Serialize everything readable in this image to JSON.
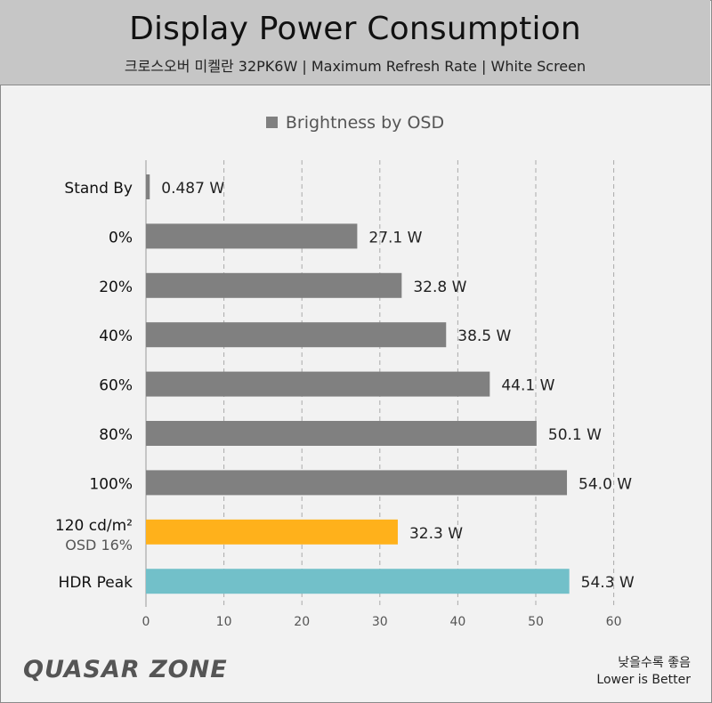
{
  "header": {
    "title": "Display Power Consumption",
    "subtitle": "크로스오버 미켈란 32PK6W  |  Maximum Refresh Rate  |  White Screen"
  },
  "colors": {
    "default": "#808080",
    "highlight": "#ffb11b",
    "hdr": "#72c0c9"
  },
  "chart_data": {
    "type": "bar",
    "orientation": "horizontal",
    "title": "Display Power Consumption",
    "legend": [
      "Brightness by OSD"
    ],
    "xlim": [
      0,
      60
    ],
    "xticks": [
      0,
      10,
      20,
      30,
      40,
      50,
      60
    ],
    "unit": "W",
    "bars": [
      {
        "label": "Stand By",
        "sublabel": "",
        "value": 0.487,
        "value_label": "0.487 W",
        "color_key": "default"
      },
      {
        "label": "0%",
        "sublabel": "",
        "value": 27.1,
        "value_label": "27.1 W",
        "color_key": "default"
      },
      {
        "label": "20%",
        "sublabel": "",
        "value": 32.8,
        "value_label": "32.8 W",
        "color_key": "default"
      },
      {
        "label": "40%",
        "sublabel": "",
        "value": 38.5,
        "value_label": "38.5 W",
        "color_key": "default"
      },
      {
        "label": "60%",
        "sublabel": "",
        "value": 44.1,
        "value_label": "44.1 W",
        "color_key": "default"
      },
      {
        "label": "80%",
        "sublabel": "",
        "value": 50.1,
        "value_label": "50.1 W",
        "color_key": "default"
      },
      {
        "label": "100%",
        "sublabel": "",
        "value": 54.0,
        "value_label": "54.0 W",
        "color_key": "default"
      },
      {
        "label": "120 cd/m²",
        "sublabel": "OSD 16%",
        "value": 32.3,
        "value_label": "32.3 W",
        "color_key": "highlight"
      },
      {
        "label": "HDR Peak",
        "sublabel": "",
        "value": 54.3,
        "value_label": "54.3 W",
        "color_key": "hdr"
      }
    ]
  },
  "footer": {
    "logo": "QUASAR ZONE",
    "note_ko": "낮을수록 좋음",
    "note_en": "Lower is Better"
  }
}
